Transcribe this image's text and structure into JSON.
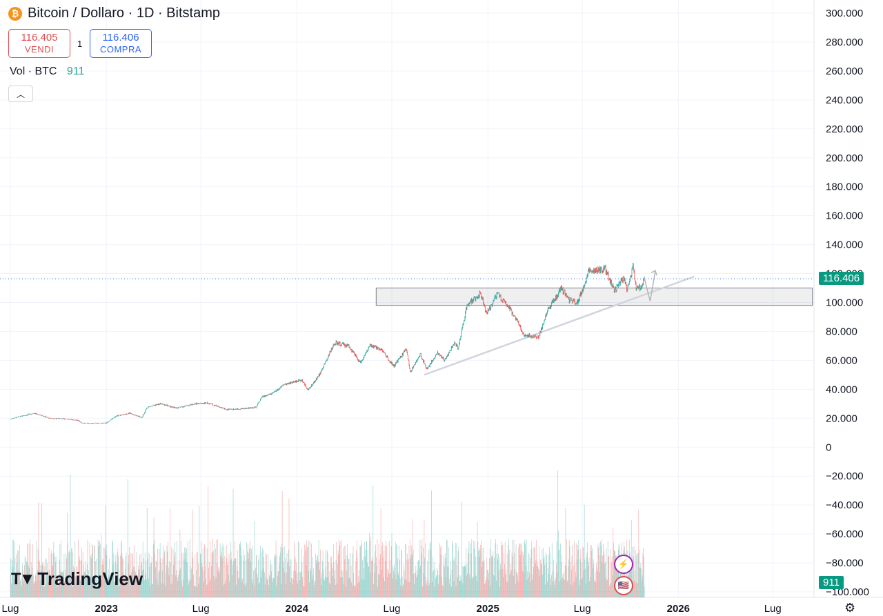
{
  "header": {
    "title": "Bitcoin / Dollaro · 1D · Bitstamp",
    "icon": "bitcoin-icon",
    "sell_price": "116.405",
    "sell_label": "VENDI",
    "spread": "1",
    "buy_price": "116.406",
    "buy_label": "COMPRA",
    "vol_label": "Vol · BTC",
    "vol_value": "911"
  },
  "colors": {
    "up": "#26a69a",
    "down": "#ef5350",
    "accent": "#2962ff",
    "price_tag": "#089981"
  },
  "tags": {
    "last_price": "116.406",
    "last_volume": "911"
  },
  "logo": "TradingView",
  "chart_data": {
    "type": "candlestick",
    "title": "Bitcoin / Dollaro · 1D · Bitstamp",
    "x_ticks": [
      "Lug",
      "2023",
      "Lug",
      "2024",
      "Lug",
      "2025",
      "Lug",
      "2026",
      "Lug"
    ],
    "y_ticks": [
      "300.000",
      "280.000",
      "260.000",
      "240.000",
      "220.000",
      "200.000",
      "180.000",
      "160.000",
      "140.000",
      "120.000",
      "100.000",
      "80.000",
      "60.000",
      "40.000",
      "20.000",
      "0",
      "−20.000",
      "−40.000",
      "−60.000",
      "−80.000",
      "−100.000"
    ],
    "ylim": [
      -100000,
      300000
    ],
    "grid": true,
    "last_price": 116406,
    "price_path": [
      [
        "2022-07-01",
        19500
      ],
      [
        "2022-08-15",
        23500
      ],
      [
        "2022-09-15",
        20000
      ],
      [
        "2022-10-15",
        19500
      ],
      [
        "2022-11-08",
        18500
      ],
      [
        "2022-11-15",
        16500
      ],
      [
        "2022-12-31",
        16600
      ],
      [
        "2023-01-20",
        21500
      ],
      [
        "2023-02-15",
        23500
      ],
      [
        "2023-03-10",
        20500
      ],
      [
        "2023-03-20",
        27500
      ],
      [
        "2023-04-15",
        30000
      ],
      [
        "2023-05-15",
        27000
      ],
      [
        "2023-06-20",
        30000
      ],
      [
        "2023-07-15",
        30500
      ],
      [
        "2023-08-20",
        26000
      ],
      [
        "2023-09-15",
        26500
      ],
      [
        "2023-10-15",
        27500
      ],
      [
        "2023-10-25",
        34500
      ],
      [
        "2023-11-15",
        37000
      ],
      [
        "2023-12-10",
        43500
      ],
      [
        "2024-01-10",
        46500
      ],
      [
        "2024-01-23",
        39500
      ],
      [
        "2024-02-15",
        51000
      ],
      [
        "2024-03-05",
        66000
      ],
      [
        "2024-03-14",
        72000
      ],
      [
        "2024-04-10",
        70000
      ],
      [
        "2024-05-01",
        58000
      ],
      [
        "2024-05-20",
        70000
      ],
      [
        "2024-06-10",
        68000
      ],
      [
        "2024-07-05",
        56000
      ],
      [
        "2024-07-29",
        68000
      ],
      [
        "2024-08-05",
        52000
      ],
      [
        "2024-08-25",
        64000
      ],
      [
        "2024-09-06",
        54000
      ],
      [
        "2024-09-27",
        65500
      ],
      [
        "2024-10-10",
        60000
      ],
      [
        "2024-10-29",
        72000
      ],
      [
        "2024-11-05",
        68000
      ],
      [
        "2024-11-22",
        98000
      ],
      [
        "2024-12-05",
        102000
      ],
      [
        "2024-12-17",
        106000
      ],
      [
        "2024-12-30",
        93000
      ],
      [
        "2025-01-20",
        106000
      ],
      [
        "2025-02-10",
        97000
      ],
      [
        "2025-03-01",
        85000
      ],
      [
        "2025-03-10",
        78000
      ],
      [
        "2025-04-08",
        76000
      ],
      [
        "2025-04-25",
        94000
      ],
      [
        "2025-05-22",
        110000
      ],
      [
        "2025-06-05",
        102000
      ],
      [
        "2025-06-22",
        100000
      ],
      [
        "2025-07-14",
        122000
      ],
      [
        "2025-08-14",
        123000
      ],
      [
        "2025-09-01",
        108000
      ],
      [
        "2025-09-18",
        117000
      ],
      [
        "2025-09-25",
        109000
      ],
      [
        "2025-10-06",
        125000
      ],
      [
        "2025-10-12",
        111000
      ],
      [
        "2025-10-20",
        110000
      ],
      [
        "2025-10-28",
        116406
      ]
    ],
    "annotations": {
      "support_zone": {
        "from": 98000,
        "to": 110000,
        "start": "2024-06-01",
        "end": "2026-09-15"
      },
      "trendline": {
        "start": [
          "2024-09-01",
          50000
        ],
        "end": [
          "2026-02-01",
          118000
        ]
      },
      "projection": [
        [
          "2025-10-28",
          116406
        ],
        [
          "2025-11-08",
          101000
        ],
        [
          "2025-11-18",
          122000
        ]
      ]
    }
  }
}
